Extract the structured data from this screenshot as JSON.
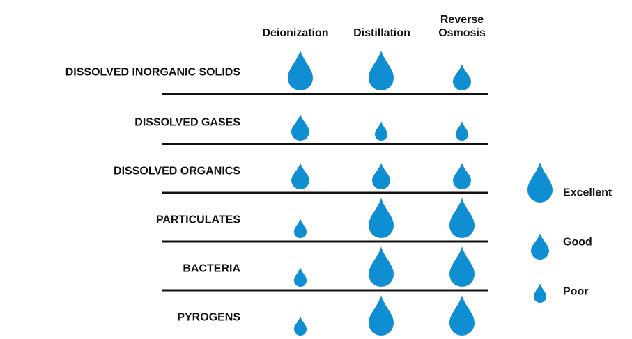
{
  "columns": [
    "Deionization",
    "Distillation",
    "Reverse Osmosis"
  ],
  "rows": [
    {
      "label": "DISSOLVED INORGANIC SOLIDS",
      "ratings": [
        "Excellent",
        "Excellent",
        "Good"
      ]
    },
    {
      "label": "DISSOLVED GASES",
      "ratings": [
        "Good",
        "Poor",
        "Poor"
      ]
    },
    {
      "label": "DISSOLVED ORGANICS",
      "ratings": [
        "Good",
        "Good",
        "Good"
      ]
    },
    {
      "label": "PARTICULATES",
      "ratings": [
        "Poor",
        "Excellent",
        "Excellent"
      ]
    },
    {
      "label": "BACTERIA",
      "ratings": [
        "Poor",
        "Excellent",
        "Excellent"
      ]
    },
    {
      "label": "PYROGENS",
      "ratings": [
        "Poor",
        "Excellent",
        "Excellent"
      ]
    }
  ],
  "legend": [
    "Excellent",
    "Good",
    "Poor"
  ],
  "color": "#0f8fd2"
}
